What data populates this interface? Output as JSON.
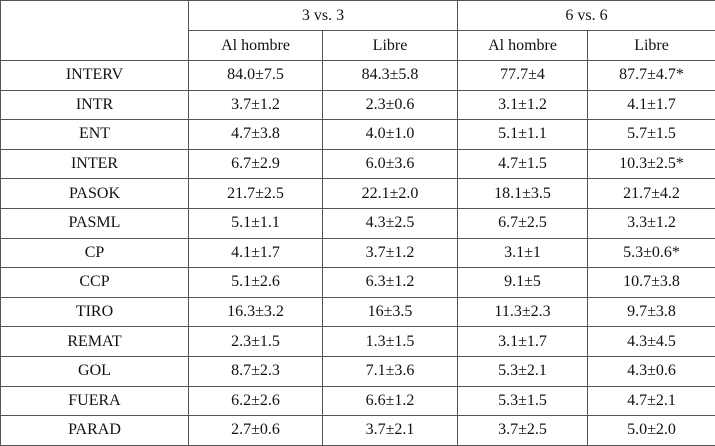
{
  "header": {
    "groups": [
      "3 vs. 3",
      "6 vs. 6"
    ],
    "columns": [
      "Al hombre",
      "Libre",
      "Al hombre",
      "Libre"
    ]
  },
  "table": {
    "rows": [
      [
        "INTERV",
        "84.0±7.5",
        "84.3±5.8",
        "77.7±4",
        "87.7±4.7*"
      ],
      [
        "INTR",
        "3.7±1.2",
        "2.3±0.6",
        "3.1±1.2",
        "4.1±1.7"
      ],
      [
        "ENT",
        "4.7±3.8",
        "4.0±1.0",
        "5.1±1.1",
        "5.7±1.5"
      ],
      [
        "INTER",
        "6.7±2.9",
        "6.0±3.6",
        "4.7±1.5",
        "10.3±2.5*"
      ],
      [
        "PASOK",
        "21.7±2.5",
        "22.1±2.0",
        "18.1±3.5",
        "21.7±4.2"
      ],
      [
        "PASML",
        "5.1±1.1",
        "4.3±2.5",
        "6.7±2.5",
        "3.3±1.2"
      ],
      [
        "CP",
        "4.1±1.7",
        "3.7±1.2",
        "3.1±1",
        "5.3±0.6*"
      ],
      [
        "CCP",
        "5.1±2.6",
        "6.3±1.2",
        "9.1±5",
        "10.7±3.8"
      ],
      [
        "TIRO",
        "16.3±3.2",
        "16±3.5",
        "11.3±2.3",
        "9.7±3.8"
      ],
      [
        "REMAT",
        "2.3±1.5",
        "1.3±1.5",
        "3.1±1.7",
        "4.3±4.5"
      ],
      [
        "GOL",
        "8.7±2.3",
        "7.1±3.6",
        "5.3±2.1",
        "4.3±0.6"
      ],
      [
        "FUERA",
        "6.2±2.6",
        "6.6±1.2",
        "5.3±1.5",
        "4.7±2.1"
      ],
      [
        "PARAD",
        "2.7±0.6",
        "3.7±2.1",
        "3.7±2.5",
        "5.0±2.0"
      ]
    ]
  }
}
